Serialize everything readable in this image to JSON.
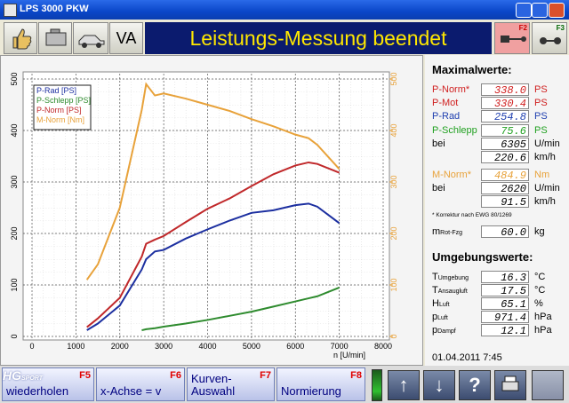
{
  "window": {
    "title": "LPS 3000 PKW"
  },
  "toolbar": {
    "va": "VA",
    "status": "Leistungs-Messung beendet",
    "f2": "F2",
    "f3": "F3"
  },
  "chart_data": {
    "type": "line",
    "x_label": "n [U/min]",
    "x": [
      1250,
      1500,
      2000,
      2500,
      2600,
      2800,
      3000,
      3500,
      4000,
      4500,
      5000,
      5500,
      6000,
      6300,
      6500,
      7000
    ],
    "series": [
      {
        "name": "P-Rad [PS]",
        "color": "#1c2fa0",
        "values": [
          12,
          25,
          60,
          130,
          150,
          165,
          168,
          190,
          208,
          225,
          240,
          245,
          255,
          258,
          252,
          220
        ]
      },
      {
        "name": "P-Schlepp [PS]",
        "color": "#2e8b2e",
        "values": [
          null,
          null,
          null,
          12,
          14,
          16,
          19,
          25,
          32,
          40,
          48,
          58,
          68,
          74,
          78,
          95
        ]
      },
      {
        "name": "P-Norm [PS]",
        "color": "#c0282a",
        "values": [
          18,
          35,
          75,
          155,
          180,
          188,
          195,
          222,
          248,
          268,
          292,
          315,
          332,
          338,
          335,
          318
        ]
      },
      {
        "name": "M-Norm [Nm]",
        "color": "#e8a23a",
        "axis": "y2",
        "values": [
          110,
          140,
          250,
          440,
          490,
          468,
          472,
          462,
          450,
          438,
          422,
          408,
          392,
          385,
          372,
          325
        ]
      }
    ],
    "xlim": [
      0,
      8000
    ],
    "xticks": [
      0,
      1000,
      2000,
      3000,
      4000,
      5000,
      6000,
      7000,
      8000
    ],
    "ylim": [
      0,
      500
    ],
    "yticks": [
      0,
      100,
      200,
      300,
      400,
      500
    ],
    "y2lim": [
      0,
      500
    ],
    "y2ticks": [
      0,
      100,
      200,
      300,
      400,
      500
    ],
    "y2_color": "#e8a23a",
    "grid": true
  },
  "maximalwerte": {
    "title": "Maximalwerte:",
    "rows": [
      {
        "label": "P-Norm*",
        "value": "338.0",
        "unit": "PS"
      },
      {
        "label": "P-Mot",
        "value": "330.4",
        "unit": "PS"
      },
      {
        "label": "P-Rad",
        "value": "254.8",
        "unit": "PS"
      },
      {
        "label": "P-Schlepp",
        "value": "75.6",
        "unit": "PS"
      },
      {
        "label": "bei",
        "value": "6305",
        "unit": "U/min"
      },
      {
        "value": "220.6",
        "unit": "km/h"
      },
      {
        "label": "M-Norm*",
        "value": "484.9",
        "unit": "Nm"
      },
      {
        "label": "bei",
        "value": "2620",
        "unit": "U/min"
      },
      {
        "value": "91.5",
        "unit": "km/h"
      }
    ],
    "note": "* Korrektur nach EWG 80/1269",
    "mass": {
      "label": "m",
      "sub": "Rot-Fzg",
      "value": "60.0",
      "unit": "kg"
    }
  },
  "umgebungswerte": {
    "title": "Umgebungswerte:",
    "rows": [
      {
        "label": "T",
        "sub": "Umgebung",
        "value": "16.3",
        "unit": "°C"
      },
      {
        "label": "T",
        "sub": "Ansaugluft",
        "value": "17.5",
        "unit": "°C"
      },
      {
        "label": "H",
        "sub": "Luft",
        "value": "65.1",
        "unit": "%"
      },
      {
        "label": "p",
        "sub": "Luft",
        "value": "971.4",
        "unit": "hPa"
      },
      {
        "label": "p",
        "sub": "Dampf",
        "value": "12.1",
        "unit": "hPa"
      }
    ]
  },
  "datetime": "01.04.2011   7:45",
  "footer": {
    "logo": "HG",
    "logo_sub": "SPORT",
    "buttons": [
      {
        "key": "F5",
        "label": "wiederholen"
      },
      {
        "key": "F6",
        "label": "x-Achse = v"
      },
      {
        "key": "F7",
        "label": "Kurven-",
        "label2": "Auswahl"
      },
      {
        "key": "F8",
        "label": "Normierung"
      }
    ]
  }
}
